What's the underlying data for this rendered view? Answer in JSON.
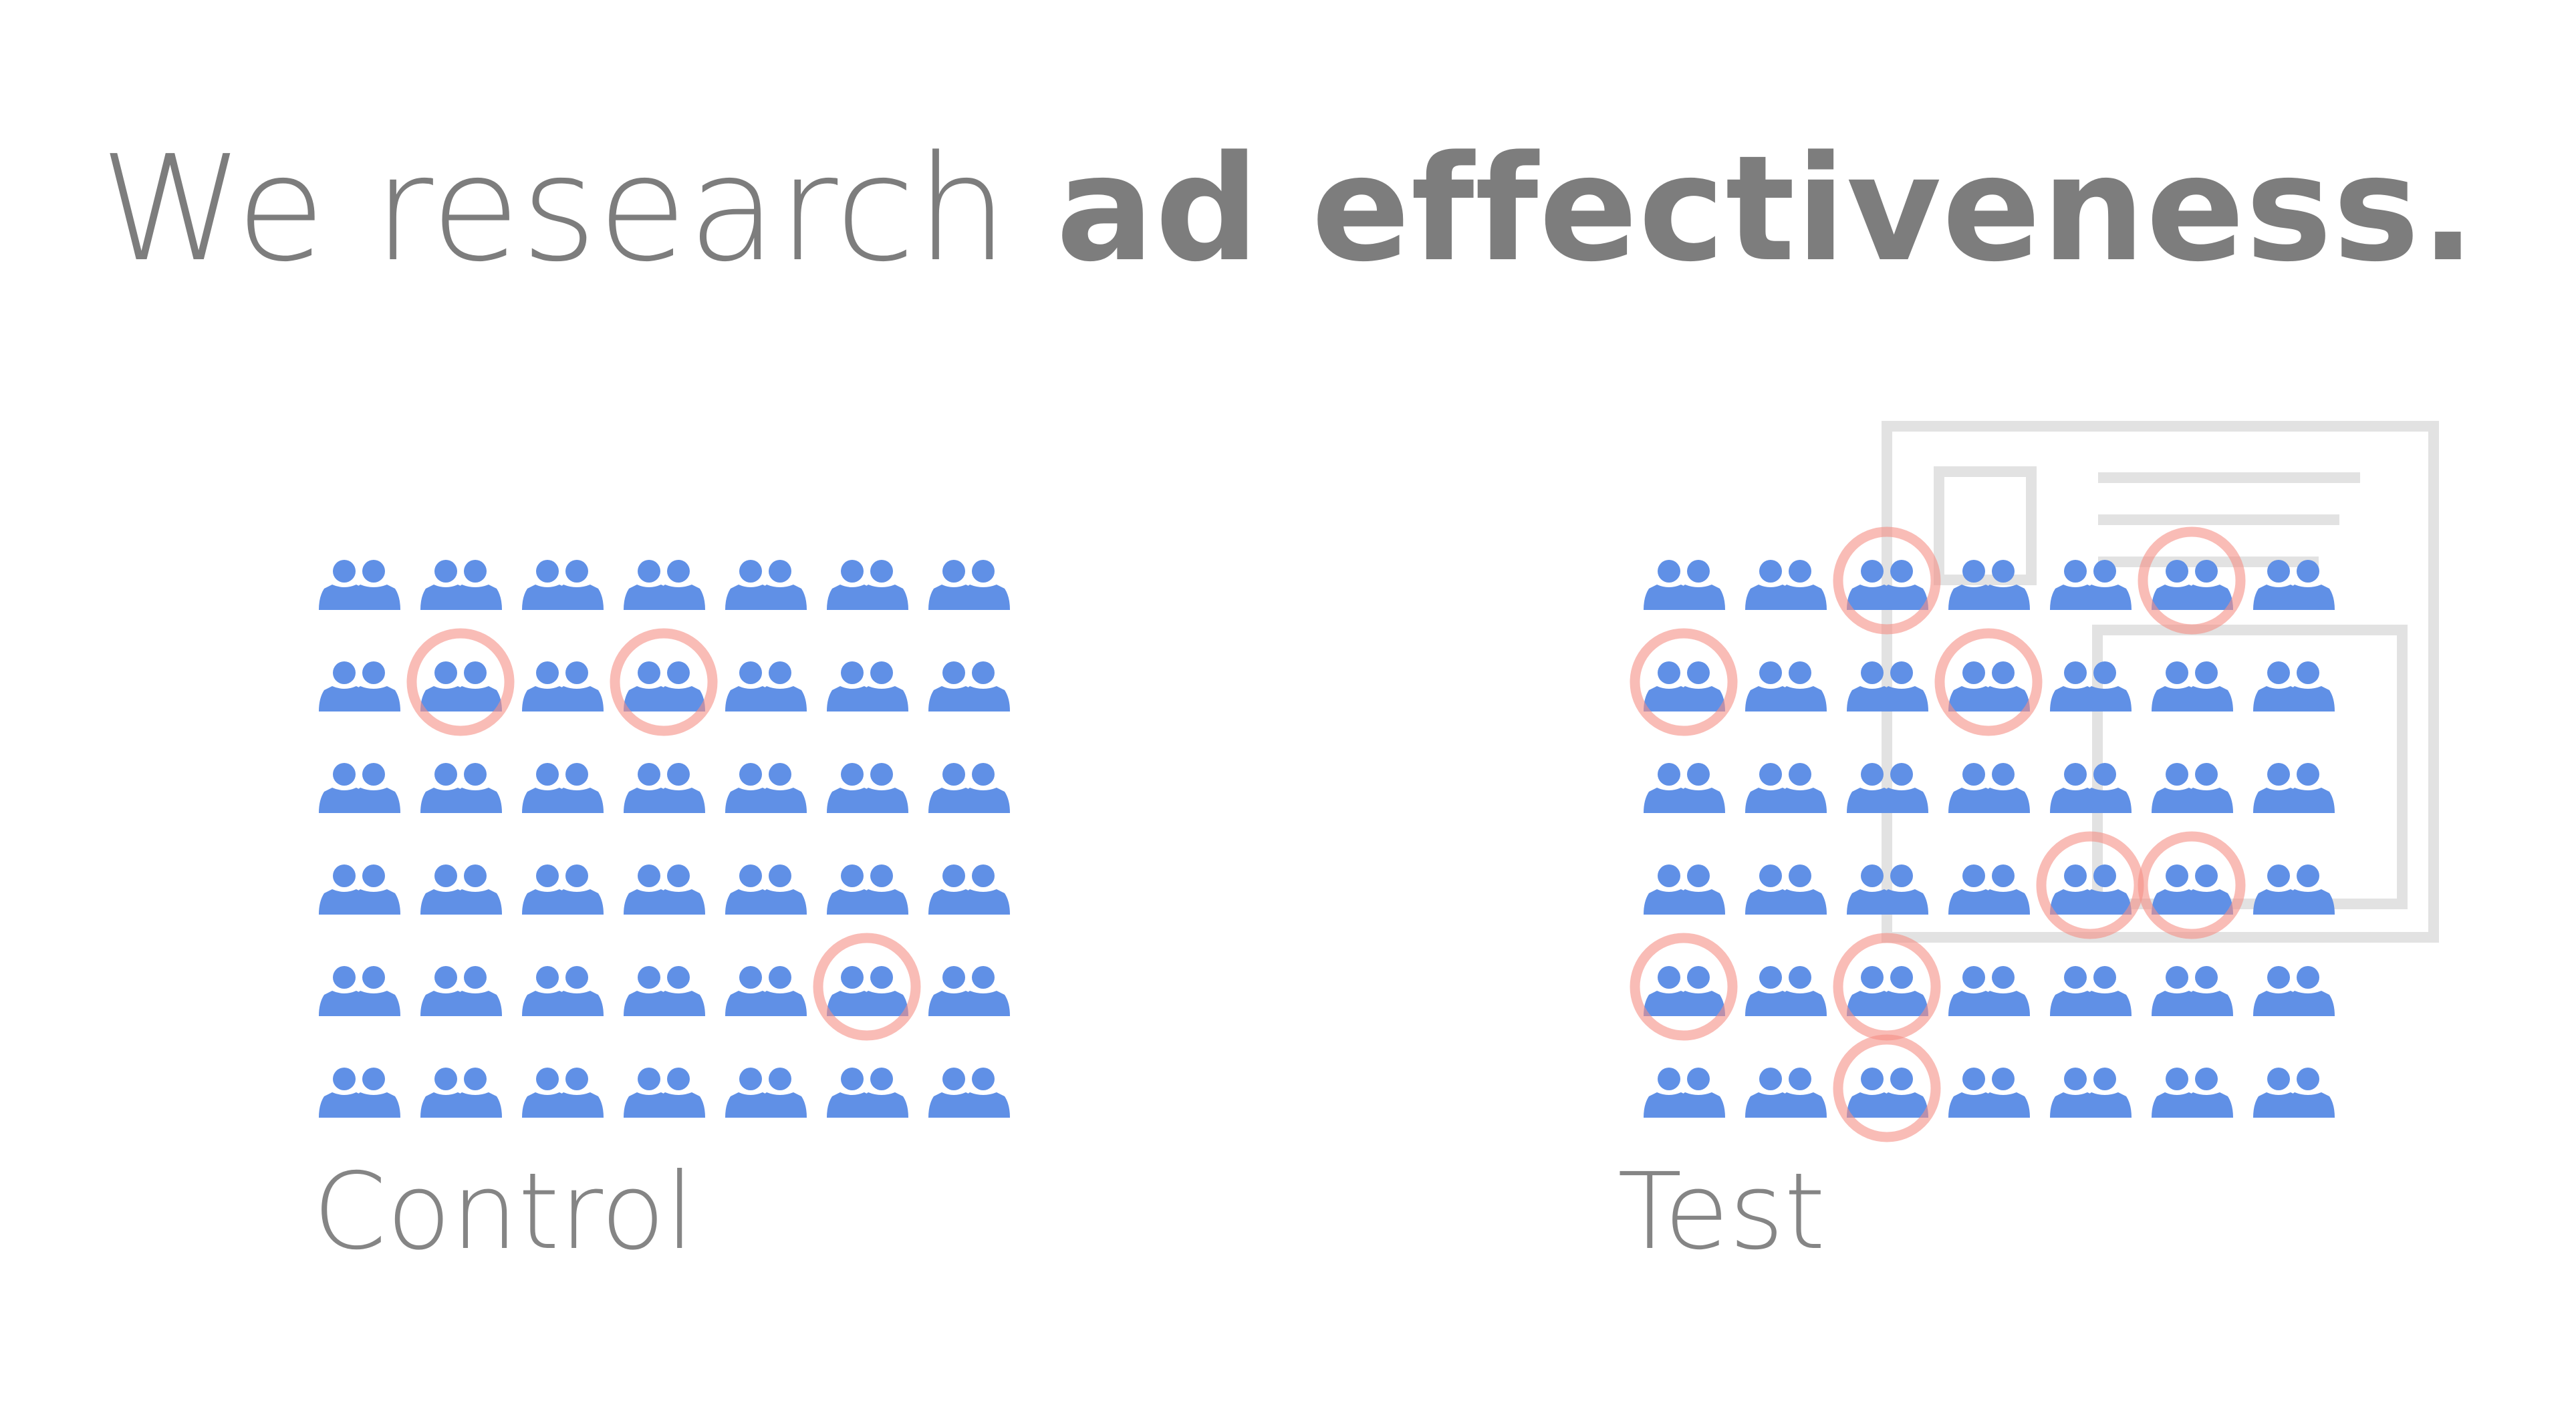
{
  "title": {
    "regular": "We research ",
    "bold": "ad effectiveness."
  },
  "colors": {
    "text": "#7d7d7d",
    "people_icon": "#6090e6",
    "highlight_ring": "#f58f86",
    "ad_frame": "#e2e2e2"
  },
  "icon": "people-icon",
  "groups": [
    {
      "id": "control",
      "label": "Control",
      "rows": 6,
      "cols": 7,
      "highlighted": [
        [
          1,
          1
        ],
        [
          1,
          3
        ],
        [
          4,
          5
        ]
      ]
    },
    {
      "id": "test",
      "label": "Test",
      "rows": 6,
      "cols": 7,
      "highlighted": [
        [
          0,
          2
        ],
        [
          0,
          5
        ],
        [
          1,
          0
        ],
        [
          1,
          3
        ],
        [
          3,
          4
        ],
        [
          3,
          5
        ],
        [
          4,
          0
        ],
        [
          4,
          2
        ],
        [
          5,
          2
        ]
      ],
      "ad_overlay": "ad-frame-icon"
    }
  ]
}
